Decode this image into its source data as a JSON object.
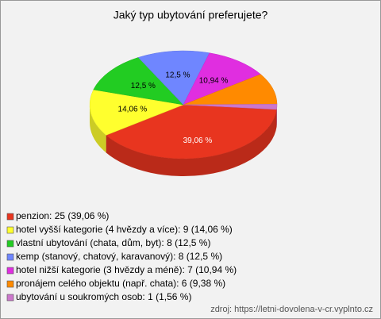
{
  "chart_data": {
    "type": "pie3d",
    "title": "Jaký typ ubytování preferujete?",
    "categories": [
      "penzion: 25 (39,06 %)",
      "hotel vyšší kategorie (4 hvězdy a více): 9 (14,06 %)",
      "vlastní ubytování (chata, dům, byt): 8 (12,5 %)",
      "kemp (stanový, chatový, karavanový): 8 (12,5 %)",
      "hotel nižší kategorie (3 hvězdy a méně): 7 (10,94 %)",
      "pronájem celého objektu (např. chata): 6 (9,38 %)",
      "ubytování u soukromých osob: 1 (1,56 %)"
    ],
    "values": [
      39.06,
      14.06,
      12.5,
      12.5,
      10.94,
      9.38,
      1.56
    ],
    "value_labels": [
      "39,06 %",
      "14,06 %",
      "12,5 %",
      "12,5 %",
      "10,94 %",
      null,
      null
    ],
    "colors": [
      "#e8351f",
      "#ffff2e",
      "#22cc22",
      "#6f86ff",
      "#e02ee0",
      "#ff8a00",
      "#cc77cc"
    ],
    "source": "zdroj: https://letni-dovolena-v-cr.vyplnto.cz"
  }
}
